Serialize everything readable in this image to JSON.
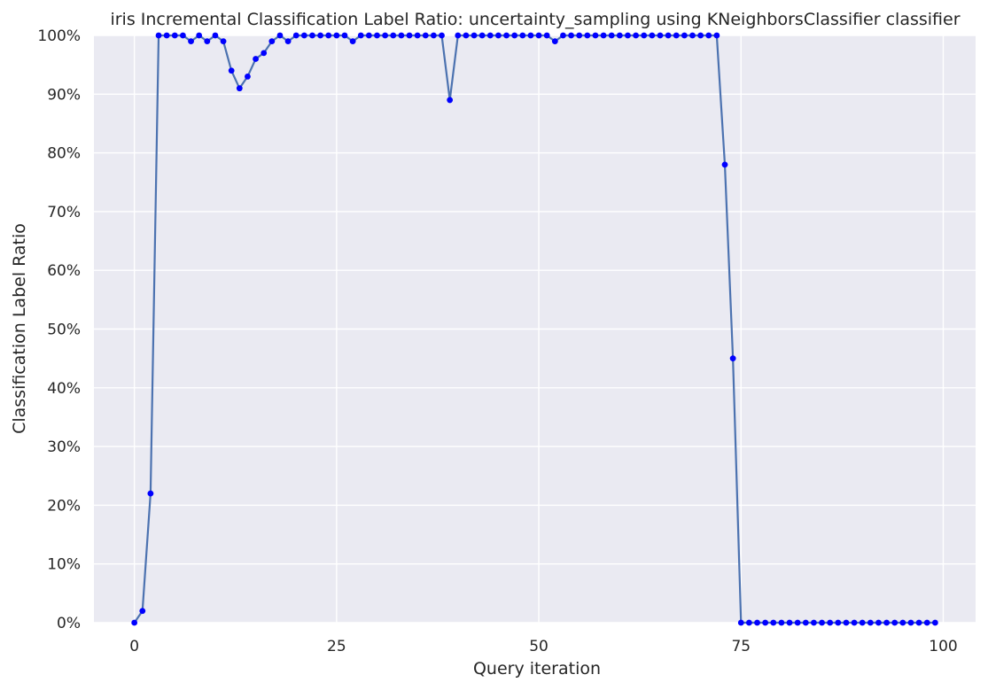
{
  "chart_data": {
    "type": "line",
    "title": "iris Incremental Classification Label Ratio: uncertainty_sampling using KNeighborsClassifier classifier",
    "xlabel": "Query iteration",
    "ylabel": "Classification Label Ratio",
    "xlim": [
      -5,
      104
    ],
    "ylim": [
      0,
      1
    ],
    "x_ticks": [
      0,
      25,
      50,
      75,
      100
    ],
    "x_tick_labels": [
      "0",
      "25",
      "50",
      "75",
      "100"
    ],
    "y_ticks": [
      0,
      0.1,
      0.2,
      0.3,
      0.4,
      0.5,
      0.6,
      0.7,
      0.8,
      0.9,
      1.0
    ],
    "y_tick_labels": [
      "0%",
      "10%",
      "20%",
      "30%",
      "40%",
      "50%",
      "60%",
      "70%",
      "80%",
      "90%",
      "100%"
    ],
    "grid": true,
    "background": "#eaeaf2",
    "grid_color": "#ffffff",
    "line_color": "#4c72b0",
    "marker_color": "#0000ff",
    "series": [
      {
        "x": [
          0,
          1,
          2,
          3,
          4,
          5,
          6,
          7,
          8,
          9,
          10,
          11,
          12,
          13,
          14,
          15,
          16,
          17,
          18,
          19,
          20,
          21,
          22,
          23,
          24,
          25,
          26,
          27,
          28,
          29,
          30,
          31,
          32,
          33,
          34,
          35,
          36,
          37,
          38,
          39,
          40,
          41,
          42,
          43,
          44,
          45,
          46,
          47,
          48,
          49,
          50,
          51,
          52,
          53,
          54,
          55,
          56,
          57,
          58,
          59,
          60,
          61,
          62,
          63,
          64,
          65,
          66,
          67,
          68,
          69,
          70,
          71,
          72,
          73,
          74,
          75,
          76,
          77,
          78,
          79,
          80,
          81,
          82,
          83,
          84,
          85,
          86,
          87,
          88,
          89,
          90,
          91,
          92,
          93,
          94,
          95,
          96,
          97,
          98,
          99
        ],
        "values": [
          0,
          0.02,
          0.22,
          1.0,
          1.0,
          1.0,
          1.0,
          0.99,
          1.0,
          0.99,
          1.0,
          0.99,
          0.94,
          0.91,
          0.93,
          0.96,
          0.97,
          0.99,
          1.0,
          0.99,
          1.0,
          1.0,
          1.0,
          1.0,
          1.0,
          1.0,
          1.0,
          0.99,
          1.0,
          1.0,
          1.0,
          1.0,
          1.0,
          1.0,
          1.0,
          1.0,
          1.0,
          1.0,
          1.0,
          0.89,
          1.0,
          1.0,
          1.0,
          1.0,
          1.0,
          1.0,
          1.0,
          1.0,
          1.0,
          1.0,
          1.0,
          1.0,
          0.99,
          1.0,
          1.0,
          1.0,
          1.0,
          1.0,
          1.0,
          1.0,
          1.0,
          1.0,
          1.0,
          1.0,
          1.0,
          1.0,
          1.0,
          1.0,
          1.0,
          1.0,
          1.0,
          1.0,
          1.0,
          0.78,
          0.45,
          0,
          0,
          0,
          0,
          0,
          0,
          0,
          0,
          0,
          0,
          0,
          0,
          0,
          0,
          0,
          0,
          0,
          0,
          0,
          0,
          0,
          0,
          0,
          0,
          0
        ]
      }
    ]
  }
}
